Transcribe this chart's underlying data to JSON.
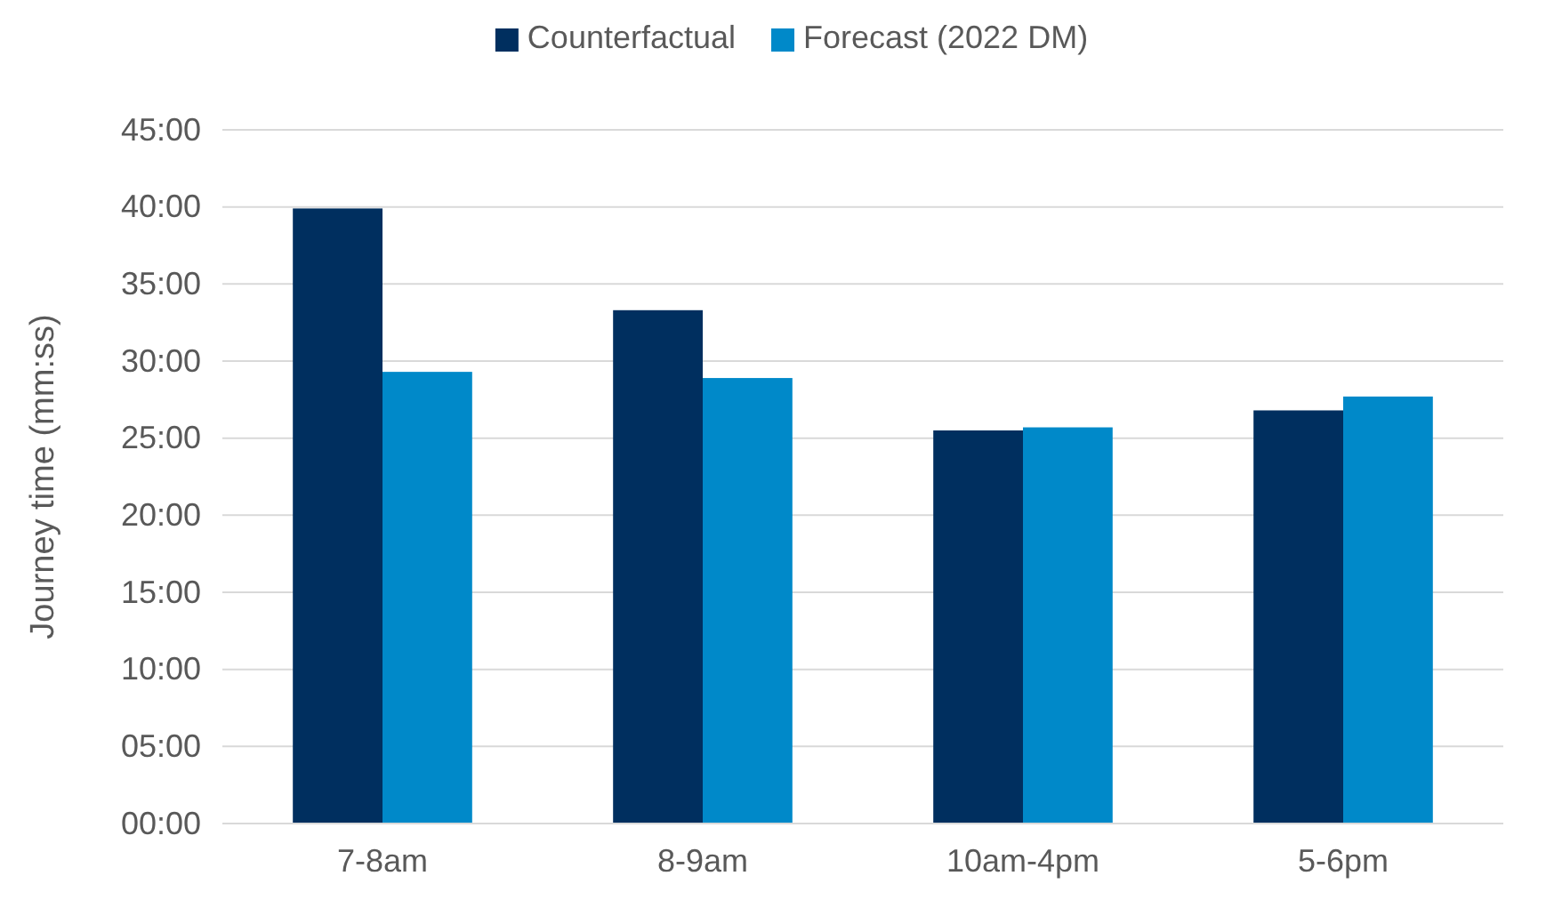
{
  "chart_data": {
    "type": "bar",
    "ylabel": "Journey time (mm:ss)",
    "categories": [
      "7-8am",
      "8-9am",
      "10am-4pm",
      "5-6pm"
    ],
    "series": [
      {
        "name": "Counterfactual",
        "color": "#002f5f",
        "values": [
          39.9,
          33.3,
          25.5,
          26.8
        ]
      },
      {
        "name": "Forecast (2022 DM)",
        "color": "#0089c9",
        "values": [
          29.3,
          28.9,
          25.7,
          27.7
        ]
      }
    ],
    "ylim": [
      0,
      45
    ],
    "yticks": [
      {
        "value": 0,
        "label": "00:00"
      },
      {
        "value": 5,
        "label": "05:00"
      },
      {
        "value": 10,
        "label": "10:00"
      },
      {
        "value": 15,
        "label": "15:00"
      },
      {
        "value": 20,
        "label": "20:00"
      },
      {
        "value": 25,
        "label": "25:00"
      },
      {
        "value": 30,
        "label": "30:00"
      },
      {
        "value": 35,
        "label": "35:00"
      },
      {
        "value": 40,
        "label": "40:00"
      },
      {
        "value": 45,
        "label": "45:00"
      }
    ],
    "grid": "y",
    "legend": "top"
  }
}
